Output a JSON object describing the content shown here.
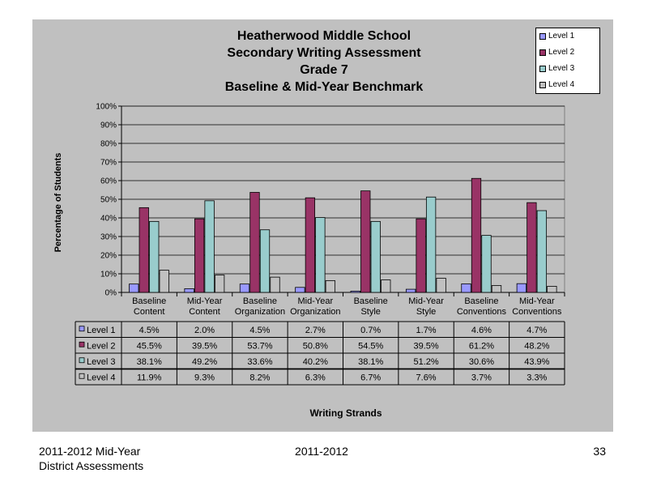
{
  "chart_data": {
    "type": "bar",
    "title_lines": [
      "Heatherwood Middle School",
      "Secondary Writing Assessment",
      "Grade 7",
      "Baseline & Mid-Year Benchmark"
    ],
    "ylabel": "Percentage of Students",
    "xlabel": "Writing Strands",
    "ylim": [
      0,
      100
    ],
    "y_ticks": [
      "0%",
      "10%",
      "20%",
      "30%",
      "40%",
      "50%",
      "60%",
      "70%",
      "80%",
      "90%",
      "100%"
    ],
    "categories": [
      [
        "Baseline",
        "Content"
      ],
      [
        "Mid-Year",
        "Content"
      ],
      [
        "Baseline",
        "Organization"
      ],
      [
        "Mid-Year",
        "Organization"
      ],
      [
        "Baseline",
        "Style"
      ],
      [
        "Mid-Year",
        "Style"
      ],
      [
        "Baseline",
        "Conventions"
      ],
      [
        "Mid-Year",
        "Conventions"
      ]
    ],
    "series": [
      {
        "name": "Level 1",
        "color": "#9999ff",
        "values": [
          4.5,
          2.0,
          4.5,
          2.7,
          0.7,
          1.7,
          4.6,
          4.7
        ],
        "labels": [
          "4.5%",
          "2.0%",
          "4.5%",
          "2.7%",
          "0.7%",
          "1.7%",
          "4.6%",
          "4.7%"
        ]
      },
      {
        "name": "Level 2",
        "color": "#993366",
        "values": [
          45.5,
          39.5,
          53.7,
          50.8,
          54.5,
          39.5,
          61.2,
          48.2
        ],
        "labels": [
          "45.5%",
          "39.5%",
          "53.7%",
          "50.8%",
          "54.5%",
          "39.5%",
          "61.2%",
          "48.2%"
        ]
      },
      {
        "name": "Level 3",
        "color": "#99cccc",
        "values": [
          38.1,
          49.2,
          33.6,
          40.2,
          38.1,
          51.2,
          30.6,
          43.9
        ],
        "labels": [
          "38.1%",
          "49.2%",
          "33.6%",
          "40.2%",
          "38.1%",
          "51.2%",
          "30.6%",
          "43.9%"
        ]
      },
      {
        "name": "Level 4",
        "color": "#c0c0c0",
        "values": [
          11.9,
          9.3,
          8.2,
          6.3,
          6.7,
          7.6,
          3.7,
          3.3
        ],
        "labels": [
          "11.9%",
          "9.3%",
          "8.2%",
          "6.3%",
          "6.7%",
          "7.6%",
          "3.7%",
          "3.3%"
        ]
      }
    ],
    "legend": [
      "Level 1",
      "Level 2",
      "Level 3",
      "Level 4"
    ],
    "legend_position": "top-right",
    "grid": true,
    "data_table": true
  },
  "footer": {
    "left_line1": "2011-2012  Mid-Year",
    "left_line2": "District Assessments",
    "center": "2011-2012",
    "page_number": "33"
  }
}
